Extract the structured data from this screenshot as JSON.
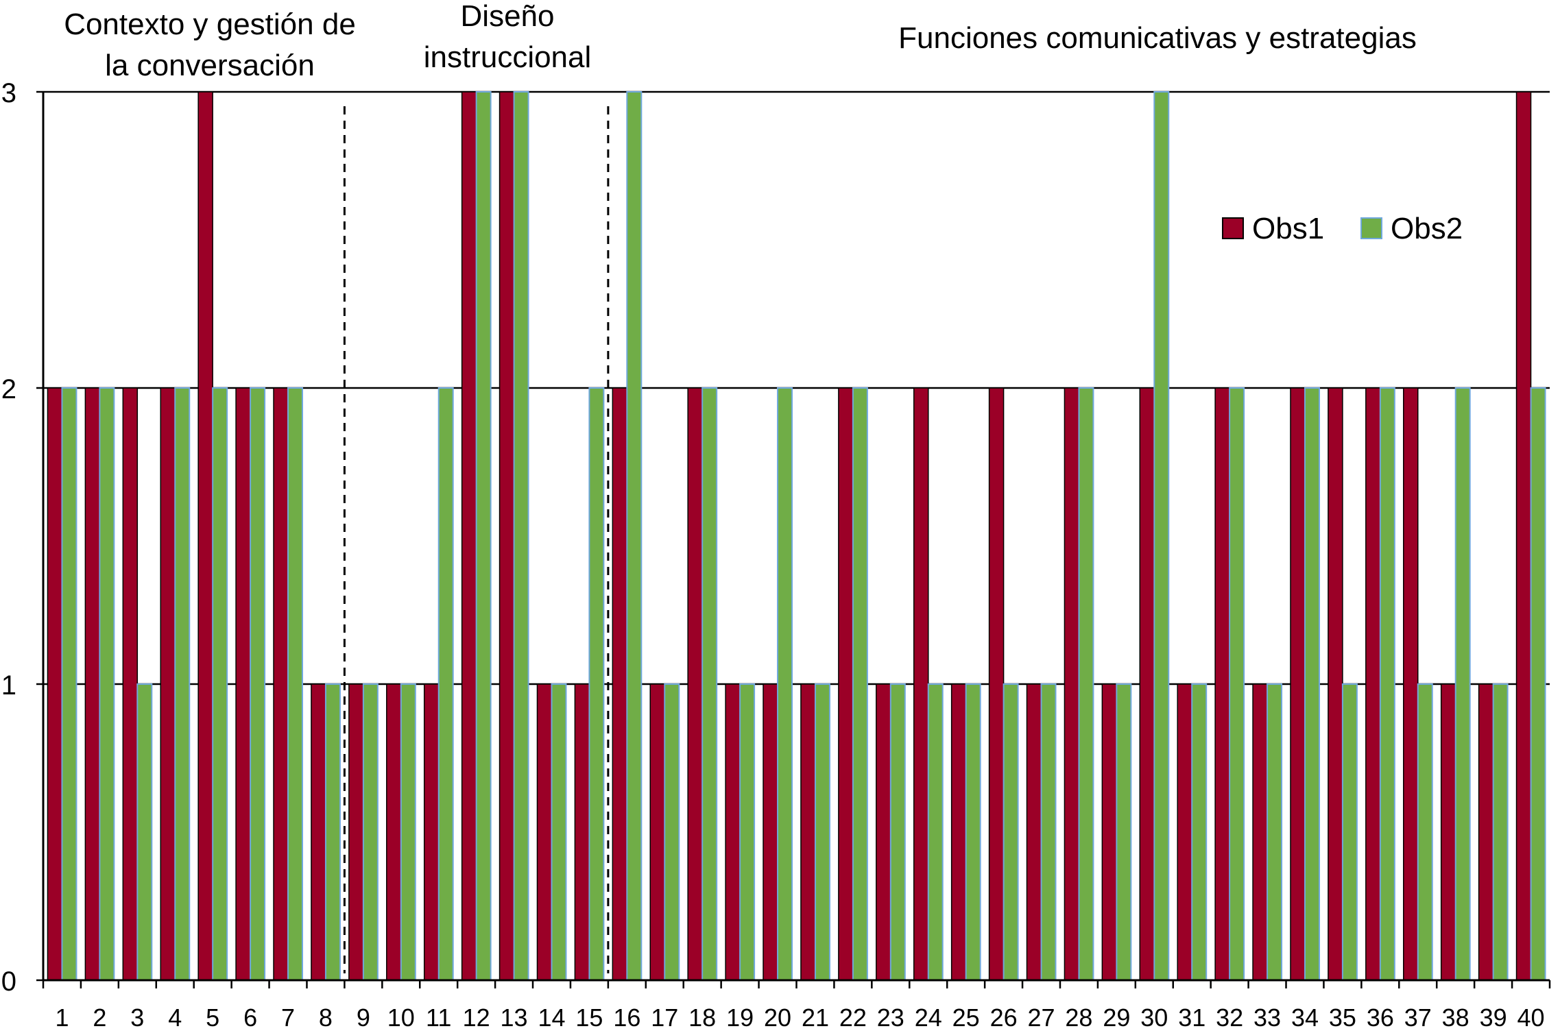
{
  "section_labels": {
    "contexto_line1": "Contexto y gestión de",
    "contexto_line2": "la conversación",
    "diseno_line1": "Diseño",
    "diseno_line2": "instruccional",
    "funciones": "Funciones comunicativas y estrategias"
  },
  "colors": {
    "obs1": "#9b0027",
    "obs2": "#70ad47",
    "obs2_border": "#6fa8dc"
  },
  "chart_data": {
    "type": "bar",
    "categories": [
      "1",
      "2",
      "3",
      "4",
      "5",
      "6",
      "7",
      "8",
      "9",
      "10",
      "11",
      "12",
      "13",
      "14",
      "15",
      "16",
      "17",
      "18",
      "19",
      "20",
      "21",
      "22",
      "23",
      "24",
      "25",
      "26",
      "27",
      "28",
      "29",
      "30",
      "31",
      "32",
      "33",
      "34",
      "35",
      "36",
      "37",
      "38",
      "39",
      "40"
    ],
    "series": [
      {
        "name": "Obs1",
        "values": [
          2,
          2,
          2,
          2,
          3,
          2,
          2,
          1,
          1,
          1,
          1,
          3,
          3,
          1,
          1,
          2,
          1,
          2,
          1,
          1,
          1,
          2,
          1,
          2,
          1,
          2,
          1,
          2,
          1,
          2,
          1,
          2,
          1,
          2,
          2,
          2,
          2,
          1,
          1,
          3
        ]
      },
      {
        "name": "Obs2",
        "values": [
          2,
          2,
          1,
          2,
          2,
          2,
          2,
          1,
          1,
          1,
          2,
          3,
          3,
          1,
          2,
          3,
          1,
          2,
          1,
          2,
          1,
          2,
          1,
          1,
          1,
          1,
          1,
          2,
          1,
          3,
          1,
          2,
          1,
          2,
          1,
          2,
          1,
          2,
          1,
          2
        ]
      }
    ],
    "ylim": [
      0,
      3
    ],
    "yticks": [
      "0",
      "1",
      "2",
      "3"
    ],
    "grid": true,
    "legend_position": "top-right",
    "section_dividers_after": [
      8,
      15
    ]
  }
}
